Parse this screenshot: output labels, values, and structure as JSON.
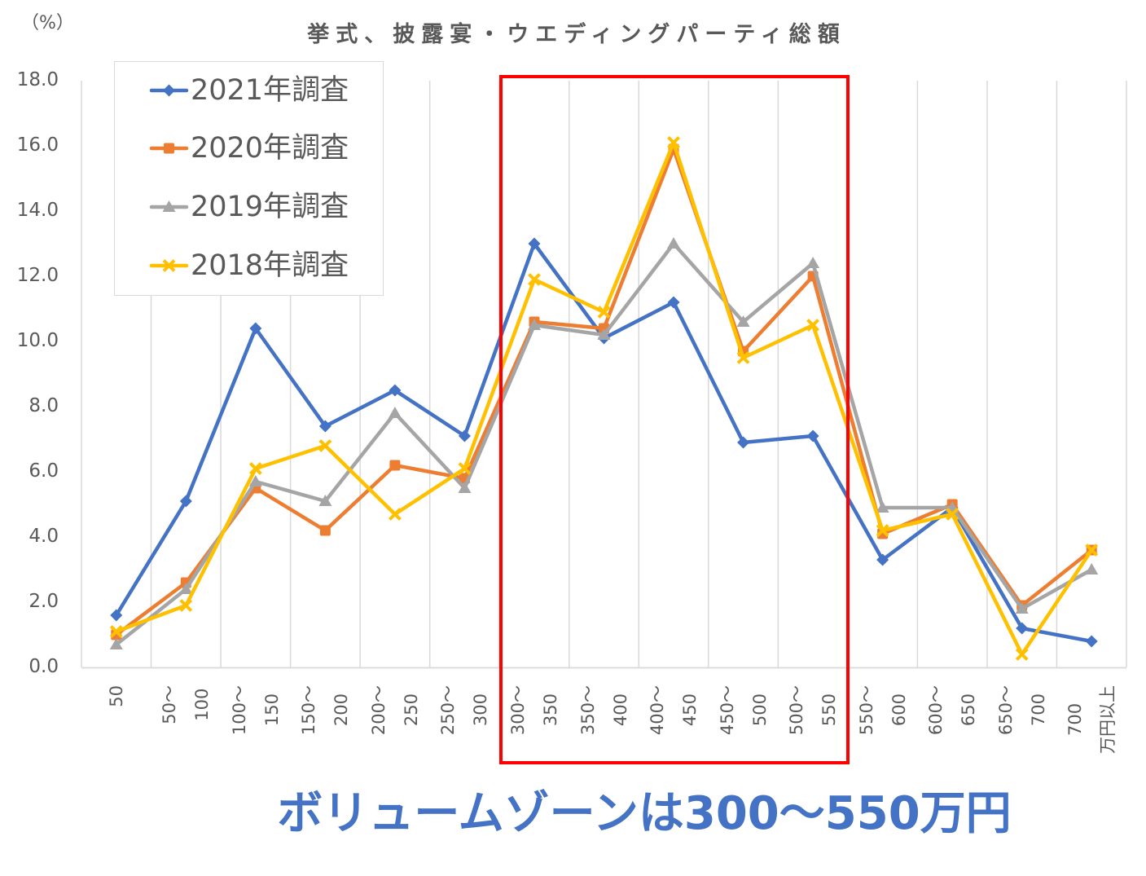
{
  "chart_data": {
    "type": "line",
    "title": "挙式、披露宴・ウエディングパーティ総額",
    "ylabel": "（%）",
    "xlabel": "",
    "ylim": [
      0,
      18
    ],
    "yticks": [
      "0.0",
      "2.0",
      "4.0",
      "6.0",
      "8.0",
      "10.0",
      "12.0",
      "14.0",
      "16.0",
      "18.0"
    ],
    "grid": {
      "vertical": true,
      "horizontal": false
    },
    "legend_position": "top-left",
    "categories": [
      "50",
      "50〜100",
      "100〜150",
      "150〜200",
      "200〜250",
      "250〜300",
      "300〜350",
      "350〜400",
      "400〜450",
      "450〜500",
      "500〜550",
      "550〜600",
      "600〜650",
      "650〜700",
      "700万円以上"
    ],
    "category_label_lines": [
      [
        "50"
      ],
      [
        "50〜",
        "100"
      ],
      [
        "100〜",
        "150"
      ],
      [
        "150〜",
        "200"
      ],
      [
        "200〜",
        "250"
      ],
      [
        "250〜",
        "300"
      ],
      [
        "300〜",
        "350"
      ],
      [
        "350〜",
        "400"
      ],
      [
        "400〜",
        "450"
      ],
      [
        "450〜",
        "500"
      ],
      [
        "500〜",
        "550"
      ],
      [
        "550〜",
        "600"
      ],
      [
        "600〜",
        "650"
      ],
      [
        "650〜",
        "700"
      ],
      [
        "700",
        "万円以上"
      ]
    ],
    "series": [
      {
        "name": "2021年調査",
        "color": "#4472C4",
        "marker": "diamond",
        "values": [
          1.6,
          5.1,
          10.4,
          7.4,
          8.5,
          7.1,
          13.0,
          10.1,
          11.2,
          6.9,
          7.1,
          3.3,
          4.9,
          1.2,
          0.8
        ]
      },
      {
        "name": "2020年調査",
        "color": "#ED7D31",
        "marker": "square",
        "values": [
          1.0,
          2.6,
          5.5,
          4.2,
          6.2,
          5.8,
          10.6,
          10.4,
          15.9,
          9.7,
          12.0,
          4.1,
          5.0,
          1.9,
          3.6
        ]
      },
      {
        "name": "2019年調査",
        "color": "#A5A5A5",
        "marker": "triangle",
        "values": [
          0.7,
          2.4,
          5.7,
          5.1,
          7.8,
          5.5,
          10.5,
          10.2,
          13.0,
          10.6,
          12.4,
          4.9,
          4.9,
          1.8,
          3.0
        ]
      },
      {
        "name": "2018年調査",
        "color": "#FFC000",
        "marker": "x",
        "values": [
          1.1,
          1.9,
          6.1,
          6.8,
          4.7,
          6.1,
          11.9,
          10.9,
          16.1,
          9.5,
          10.5,
          4.2,
          4.7,
          0.4,
          3.6
        ]
      }
    ],
    "highlight": {
      "from_category": "300〜350",
      "to_category": "500〜550",
      "color": "#FF0000"
    }
  },
  "annotation": {
    "text": "ボリュームゾーンは300〜550万円",
    "color": "#4472C4"
  }
}
